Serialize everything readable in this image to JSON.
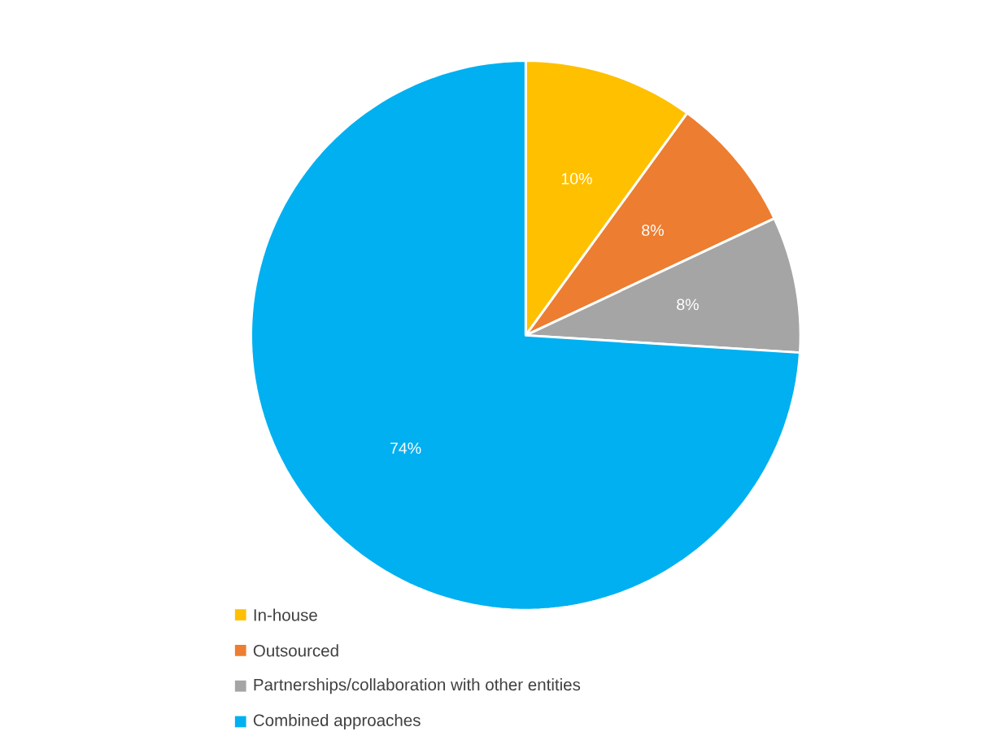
{
  "chart_data": {
    "type": "pie",
    "categories": [
      "In-house",
      "Outsourced",
      "Partnerships/collaboration with other entities",
      "Combined approaches"
    ],
    "values": [
      10,
      8,
      8,
      74
    ],
    "value_labels": [
      "10%",
      "8%",
      "8%",
      "74%"
    ],
    "colors": [
      "#ffc000",
      "#ed7d31",
      "#a5a5a5",
      "#00b0f0"
    ],
    "legend": "bottom"
  }
}
